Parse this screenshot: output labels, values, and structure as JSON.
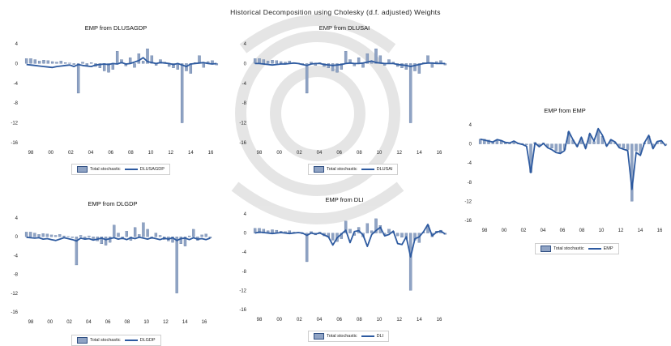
{
  "title": "Historical Decomposition using Cholesky (d.f. adjusted) Weights",
  "colors": {
    "bar": "#8fa3c4",
    "bar_edge": "#2f4f82",
    "line": "#2d5aa0",
    "watermark": "#d9d9d9"
  },
  "charts": [
    {
      "title": "EMP from DLUSAGDP",
      "legend": {
        "bar": "Total stochastic",
        "line": "DLUSAGDP"
      },
      "yticks": [
        "4",
        "0",
        "-4",
        "-8",
        "-12",
        "-16"
      ],
      "xticks": [
        "98",
        "00",
        "02",
        "04",
        "06",
        "08",
        "10",
        "12",
        "14",
        "16"
      ]
    },
    {
      "title": "EMP from DLUSAI",
      "legend": {
        "bar": "Total stochastic",
        "line": "DLUSAI"
      },
      "yticks": [
        "4",
        "0",
        "-4",
        "-8",
        "-12",
        "-16"
      ],
      "xticks": [
        "98",
        "00",
        "02",
        "04",
        "06",
        "08",
        "10",
        "12",
        "14",
        "16"
      ]
    },
    {
      "title": "EMP from EMP",
      "legend": {
        "bar": "Total stochastic",
        "line": "EMP"
      },
      "yticks": [
        "4",
        "0",
        "-4",
        "-8",
        "-12",
        "-16"
      ],
      "xticks": [
        "98",
        "00",
        "02",
        "04",
        "06",
        "08",
        "10",
        "12",
        "14",
        "16"
      ]
    },
    {
      "title": "EMP from DLGDP",
      "legend": {
        "bar": "Total stochastic",
        "line": "DLGDP"
      },
      "yticks": [
        "4",
        "0",
        "-4",
        "-8",
        "-12",
        "-16"
      ],
      "xticks": [
        "98",
        "00",
        "02",
        "04",
        "06",
        "08",
        "10",
        "12",
        "14",
        "16"
      ]
    },
    {
      "title": "EMP from DLI",
      "legend": {
        "bar": "Total stochastic",
        "line": "DLI"
      },
      "yticks": [
        "4",
        "0",
        "-4",
        "-8",
        "-12",
        "-16"
      ],
      "xticks": [
        "98",
        "00",
        "02",
        "04",
        "06",
        "08",
        "10",
        "12",
        "14",
        "16"
      ]
    }
  ],
  "chart_data": [
    {
      "type": "bar+line",
      "title": "EMP from DLUSAGDP",
      "ylim": [
        -16,
        4
      ],
      "x_range": [
        "1997",
        "2017"
      ],
      "series": [
        {
          "name": "Total stochastic",
          "values": [
            1,
            1,
            0.8,
            0.5,
            0.7,
            0.6,
            0.4,
            0.3,
            0.5,
            0.2,
            0.1,
            -0.2,
            -6,
            0.3,
            -0.4,
            0.2,
            -0.6,
            -0.9,
            -1.5,
            -1.8,
            -1.2,
            2.5,
            0.8,
            -0.5,
            1.2,
            -0.8,
            2,
            0.5,
            3,
            1.6,
            -0.4,
            0.8,
            0.3,
            -0.6,
            -0.9,
            -1.2,
            -12,
            -1.5,
            -2,
            0.2,
            1.6,
            -0.8,
            0.4,
            0.6,
            -0.3
          ]
        },
        {
          "name": "DLUSAGDP",
          "values": [
            -0.2,
            -0.3,
            -0.4,
            -0.5,
            -0.6,
            -0.7,
            -0.8,
            -0.6,
            -0.5,
            -0.4,
            -0.3,
            -0.6,
            -0.2,
            -0.4,
            -0.5,
            -0.6,
            -0.3,
            -0.2,
            -0.1,
            -0.2,
            0,
            -0.1,
            0.2,
            -0.1,
            0,
            0.3,
            0.6,
            1.2,
            0.4,
            0.2,
            0,
            0.2,
            0.1,
            0,
            -0.2,
            0,
            -0.3,
            -0.6,
            -0.1,
            0,
            0.1,
            0.2,
            0,
            -0.1,
            0
          ]
        }
      ]
    },
    {
      "type": "bar+line",
      "title": "EMP from DLUSAI",
      "ylim": [
        -16,
        4
      ],
      "x_range": [
        "1997",
        "2017"
      ],
      "series": [
        {
          "name": "Total stochastic",
          "values": [
            1,
            1,
            0.8,
            0.5,
            0.7,
            0.6,
            0.4,
            0.3,
            0.5,
            0.2,
            0.1,
            -0.2,
            -6,
            0.3,
            -0.4,
            0.2,
            -0.6,
            -0.9,
            -1.5,
            -1.8,
            -1.2,
            2.5,
            0.8,
            -0.5,
            1.2,
            -0.8,
            2,
            0.5,
            3,
            1.6,
            -0.4,
            0.8,
            0.3,
            -0.6,
            -0.9,
            -1.2,
            -12,
            -1.5,
            -2,
            0.2,
            1.6,
            -0.8,
            0.4,
            0.6,
            -0.3
          ]
        },
        {
          "name": "DLUSAI",
          "values": [
            0,
            0,
            -0.1,
            -0.2,
            -0.3,
            -0.2,
            -0.1,
            -0.1,
            0,
            0.1,
            0,
            -0.2,
            -0.4,
            -0.1,
            0,
            0,
            -0.2,
            -0.3,
            -0.4,
            -0.3,
            -0.2,
            0,
            0.1,
            0,
            0,
            0.1,
            0.3,
            0.5,
            0.2,
            0.1,
            0,
            0,
            0,
            -0.2,
            -0.3,
            -0.4,
            -0.6,
            -0.4,
            -0.2,
            0,
            0.1,
            0.1,
            0,
            0,
            0
          ]
        }
      ]
    },
    {
      "type": "bar+line",
      "title": "EMP from EMP",
      "ylim": [
        -16,
        4
      ],
      "x_range": [
        "1997",
        "2017"
      ],
      "series": [
        {
          "name": "Total stochastic",
          "values": [
            1,
            1,
            0.8,
            0.5,
            0.7,
            0.6,
            0.4,
            0.3,
            0.5,
            0.2,
            0.1,
            -0.2,
            -6,
            0.3,
            -0.4,
            0.2,
            -0.6,
            -0.9,
            -1.5,
            -1.8,
            -1.2,
            2.5,
            0.8,
            -0.5,
            1.2,
            -0.8,
            2,
            0.5,
            3,
            1.6,
            -0.4,
            0.8,
            0.3,
            -0.6,
            -0.9,
            -1.2,
            -12,
            -1.5,
            -2,
            0.2,
            1.6,
            -0.8,
            0.4,
            0.6,
            -0.3
          ]
        },
        {
          "name": "EMP",
          "values": [
            1,
            0.8,
            0.6,
            0.4,
            0.9,
            0.7,
            0.3,
            0.2,
            0.6,
            0.1,
            -0.1,
            -0.5,
            -6,
            0.2,
            -0.6,
            0.1,
            -0.8,
            -1.2,
            -1.8,
            -2,
            -1.4,
            2.6,
            0.9,
            -0.6,
            1.4,
            -1,
            2.2,
            0.6,
            3.2,
            1.8,
            -0.5,
            0.9,
            0.4,
            -0.8,
            -1.1,
            -1.4,
            -9.5,
            -1.8,
            -2.4,
            0.3,
            1.8,
            -1,
            0.5,
            0.7,
            -0.4
          ]
        }
      ]
    },
    {
      "type": "bar+line",
      "title": "EMP from DLGDP",
      "ylim": [
        -16,
        4
      ],
      "x_range": [
        "1997",
        "2017"
      ],
      "series": [
        {
          "name": "Total stochastic",
          "values": [
            1,
            1,
            0.8,
            0.5,
            0.7,
            0.6,
            0.4,
            0.3,
            0.5,
            0.2,
            0.1,
            -0.2,
            -6,
            0.3,
            -0.4,
            0.2,
            -0.6,
            -0.9,
            -1.5,
            -1.8,
            -1.2,
            2.5,
            0.8,
            -0.5,
            1.2,
            -0.8,
            2,
            0.5,
            3,
            1.6,
            -0.4,
            0.8,
            0.3,
            -0.6,
            -0.9,
            -1.2,
            -12,
            -1.5,
            -2,
            0.2,
            1.6,
            -0.8,
            0.4,
            0.6,
            -0.3
          ]
        },
        {
          "name": "DLGDP",
          "values": [
            -0.1,
            -0.2,
            -0.3,
            -0.2,
            -0.5,
            -0.4,
            -0.6,
            -0.8,
            -0.5,
            -0.2,
            -0.4,
            -0.6,
            -0.9,
            -0.3,
            -0.5,
            -0.4,
            -0.7,
            -0.5,
            -0.3,
            -0.6,
            -0.4,
            -0.2,
            -0.5,
            -0.3,
            -0.6,
            -0.2,
            -0.4,
            -0.1,
            -0.3,
            -0.5,
            -0.2,
            -0.4,
            -0.6,
            -0.3,
            -0.5,
            -0.2,
            -0.8,
            -0.4,
            -0.3,
            -0.6,
            -0.2,
            -0.5,
            -0.4,
            -0.6,
            -0.3
          ]
        }
      ]
    },
    {
      "type": "bar+line",
      "title": "EMP from DLI",
      "ylim": [
        -16,
        4
      ],
      "x_range": [
        "1997",
        "2017"
      ],
      "series": [
        {
          "name": "Total stochastic",
          "values": [
            1,
            1,
            0.8,
            0.5,
            0.7,
            0.6,
            0.4,
            0.3,
            0.5,
            0.2,
            0.1,
            -0.2,
            -6,
            0.3,
            -0.4,
            0.2,
            -0.6,
            -0.9,
            -1.5,
            -1.8,
            -1.2,
            2.5,
            0.8,
            -0.5,
            1.2,
            -0.8,
            2,
            0.5,
            3,
            1.6,
            -0.4,
            0.8,
            0.3,
            -0.6,
            -0.9,
            -1.2,
            -12,
            -1.5,
            -2,
            0.2,
            1.6,
            -0.8,
            0.4,
            0.6,
            -0.3
          ]
        },
        {
          "name": "DLI",
          "values": [
            0,
            0.2,
            0.1,
            0,
            -0.1,
            0,
            0.1,
            0,
            -0.1,
            0,
            0.1,
            0,
            -0.5,
            0,
            -0.2,
            0,
            -0.4,
            -0.8,
            -2.5,
            -1,
            -0.2,
            0.6,
            -2,
            0.3,
            0.5,
            -0.4,
            -2.8,
            -0.3,
            0.5,
            1.2,
            -0.6,
            -0.3,
            0.4,
            -2.2,
            -2.4,
            -0.8,
            -5,
            -1.2,
            -0.8,
            0.3,
            1.8,
            -0.6,
            0.2,
            0.4,
            -0.2
          ]
        }
      ]
    }
  ]
}
